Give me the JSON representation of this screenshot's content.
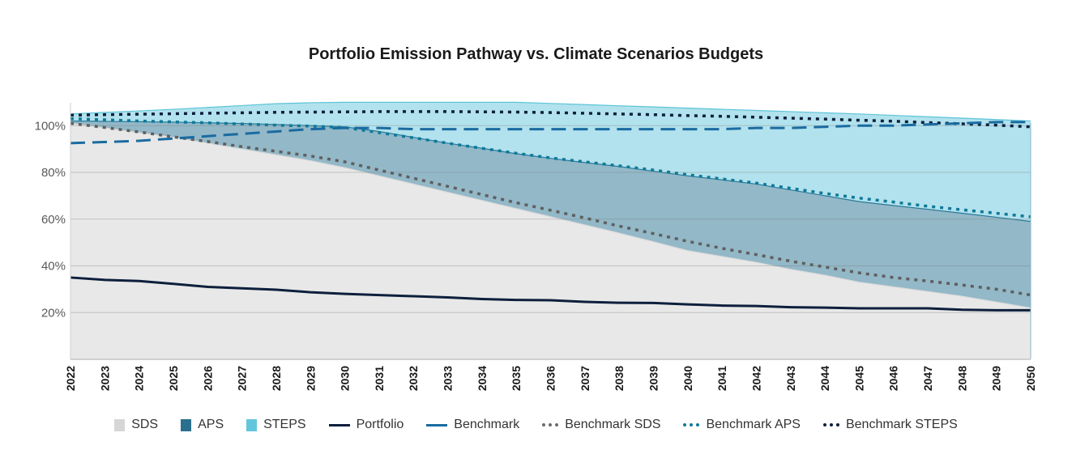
{
  "chart_data": {
    "type": "area",
    "title": "Portfolio Emission Pathway vs. Climate Scenarios Budgets",
    "xlabel": "",
    "ylabel": "",
    "x": [
      2022,
      2023,
      2024,
      2025,
      2026,
      2027,
      2028,
      2029,
      2030,
      2031,
      2032,
      2033,
      2034,
      2035,
      2036,
      2037,
      2038,
      2039,
      2040,
      2041,
      2042,
      2043,
      2044,
      2045,
      2046,
      2047,
      2048,
      2049,
      2050
    ],
    "ylim": [
      0,
      112
    ],
    "yticks": [
      20,
      40,
      60,
      80,
      100
    ],
    "ytick_labels": [
      "20%",
      "40%",
      "60%",
      "80%",
      "100%"
    ],
    "grid": true,
    "legend_position": "bottom",
    "areas": [
      {
        "name": "STEPS",
        "color": "#5bc4d8",
        "fill": "#b2e2ed",
        "values": [
          105,
          105.7,
          106.3,
          107,
          107.8,
          108.6,
          109.4,
          109.8,
          110,
          110,
          110,
          110,
          110,
          110,
          109.5,
          109,
          108.5,
          108,
          107.5,
          107,
          106.5,
          106,
          105.5,
          105,
          104.4,
          103.8,
          103.2,
          102.6,
          102
        ]
      },
      {
        "name": "APS",
        "color": "#2a7a99",
        "fill": "#93b8c8",
        "values": [
          102,
          101.8,
          101.7,
          101.5,
          101.2,
          100.9,
          100.5,
          100,
          99.5,
          97.5,
          95,
          92.5,
          90.3,
          88,
          86,
          84.2,
          82.5,
          80.5,
          78.5,
          76.8,
          75,
          72.5,
          70,
          67.5,
          65.8,
          64.2,
          62.5,
          60.8,
          59
        ]
      },
      {
        "name": "SDS",
        "color": "#d9d9d9",
        "fill": "#e8e8e8",
        "values": [
          101,
          99,
          97,
          95,
          92.5,
          90,
          87.5,
          85,
          82,
          78.5,
          75,
          71.5,
          68,
          64.5,
          61,
          57.5,
          54,
          50.3,
          46.5,
          44,
          41.5,
          38.5,
          36,
          33,
          31,
          29,
          27,
          24.5,
          22
        ]
      }
    ],
    "series": [
      {
        "name": "Portfolio",
        "color": "#0d1f3c",
        "style": "solid",
        "values": [
          35,
          34,
          33.5,
          32.3,
          31,
          30.4,
          29.8,
          28.7,
          28,
          27.5,
          27,
          26.5,
          25.8,
          25.4,
          25.3,
          24.6,
          24.2,
          24.1,
          23.5,
          23,
          22.8,
          22.3,
          22.1,
          21.8,
          21.8,
          21.8,
          21.2,
          21,
          21
        ]
      },
      {
        "name": "Benchmark",
        "color": "#1a6ba0",
        "style": "dashed",
        "values": [
          92.5,
          93,
          93.5,
          94.5,
          95.5,
          96.5,
          97.5,
          98.5,
          99,
          99,
          98.5,
          98.5,
          98.5,
          98.5,
          98.5,
          98.5,
          98.5,
          98.5,
          98.5,
          98.5,
          99,
          99,
          99.5,
          100,
          100,
          100.5,
          101,
          101.5,
          101.5
        ]
      },
      {
        "name": "Benchmark SDS",
        "color": "#5f5f5f",
        "style": "dotted",
        "values": [
          101,
          99.2,
          97.3,
          95.2,
          93.2,
          91,
          89,
          87,
          84.5,
          81,
          77.5,
          74,
          70.5,
          67,
          63.8,
          60.5,
          57,
          53.8,
          50.5,
          47.5,
          44.8,
          42,
          39.5,
          37,
          35,
          33.5,
          31.8,
          30,
          27.5
        ]
      },
      {
        "name": "Benchmark APS",
        "color": "#0f7a9a",
        "style": "dotted",
        "values": [
          103,
          102.5,
          102,
          101.6,
          101.2,
          100.7,
          100.2,
          99.8,
          99.2,
          97,
          94.8,
          92.5,
          90.3,
          88.2,
          86.2,
          84.5,
          82.8,
          81,
          79,
          77.2,
          75.4,
          73.2,
          71,
          69,
          67.3,
          65.5,
          64,
          62.5,
          61
        ]
      },
      {
        "name": "Benchmark STEPS",
        "color": "#0d1f3c",
        "style": "dotted",
        "values": [
          104.5,
          104.7,
          104.9,
          105.1,
          105.3,
          105.5,
          105.7,
          105.8,
          105.9,
          106,
          106,
          106,
          105.9,
          105.8,
          105.6,
          105.3,
          105,
          104.7,
          104.3,
          104,
          103.6,
          103.2,
          102.8,
          102.3,
          101.9,
          101.3,
          100.8,
          100.2,
          99.5
        ]
      }
    ]
  },
  "legend": {
    "items": [
      {
        "label": "SDS",
        "kind": "box",
        "color": "#d6d6d6"
      },
      {
        "label": "APS",
        "kind": "box",
        "color": "#2a6f8e"
      },
      {
        "label": "STEPS",
        "kind": "box",
        "color": "#64c6dc"
      },
      {
        "label": "Portfolio",
        "kind": "line",
        "color": "#0d1f3c"
      },
      {
        "label": "Benchmark",
        "kind": "line",
        "color": "#1a6ba0"
      },
      {
        "label": "Benchmark SDS",
        "kind": "dots",
        "color": "#6b6b6b"
      },
      {
        "label": "Benchmark APS",
        "kind": "dots",
        "color": "#0f7a9a"
      },
      {
        "label": "Benchmark STEPS",
        "kind": "dots",
        "color": "#0d1f3c"
      }
    ]
  }
}
